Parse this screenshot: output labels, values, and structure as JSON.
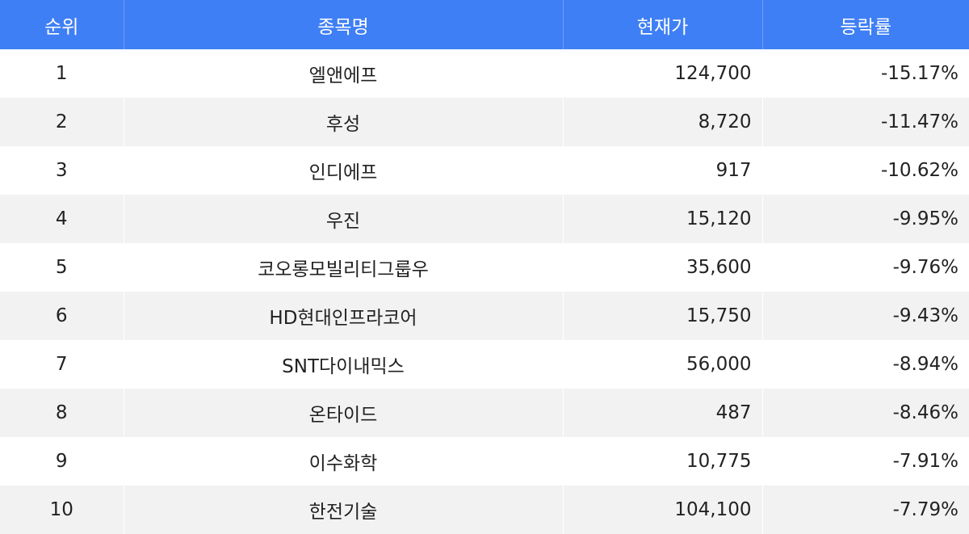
{
  "table": {
    "headers": {
      "rank": "순위",
      "name": "종목명",
      "price": "현재가",
      "change": "등락률"
    },
    "rows": [
      {
        "rank": "1",
        "name": "엘앤에프",
        "price": "124,700",
        "change": "-15.17%"
      },
      {
        "rank": "2",
        "name": "후성",
        "price": "8,720",
        "change": "-11.47%"
      },
      {
        "rank": "3",
        "name": "인디에프",
        "price": "917",
        "change": "-10.62%"
      },
      {
        "rank": "4",
        "name": "우진",
        "price": "15,120",
        "change": "-9.95%"
      },
      {
        "rank": "5",
        "name": "코오롱모빌리티그룹우",
        "price": "35,600",
        "change": "-9.76%"
      },
      {
        "rank": "6",
        "name": "HD현대인프라코어",
        "price": "15,750",
        "change": "-9.43%"
      },
      {
        "rank": "7",
        "name": "SNT다이내믹스",
        "price": "56,000",
        "change": "-8.94%"
      },
      {
        "rank": "8",
        "name": "온타이드",
        "price": "487",
        "change": "-8.46%"
      },
      {
        "rank": "9",
        "name": "이수화학",
        "price": "10,775",
        "change": "-7.91%"
      },
      {
        "rank": "10",
        "name": "한전기술",
        "price": "104,100",
        "change": "-7.79%"
      }
    ]
  },
  "colors": {
    "header_background": "#3f7ff5",
    "header_text": "#ffffff",
    "row_alt_background": "#f2f2f2"
  }
}
